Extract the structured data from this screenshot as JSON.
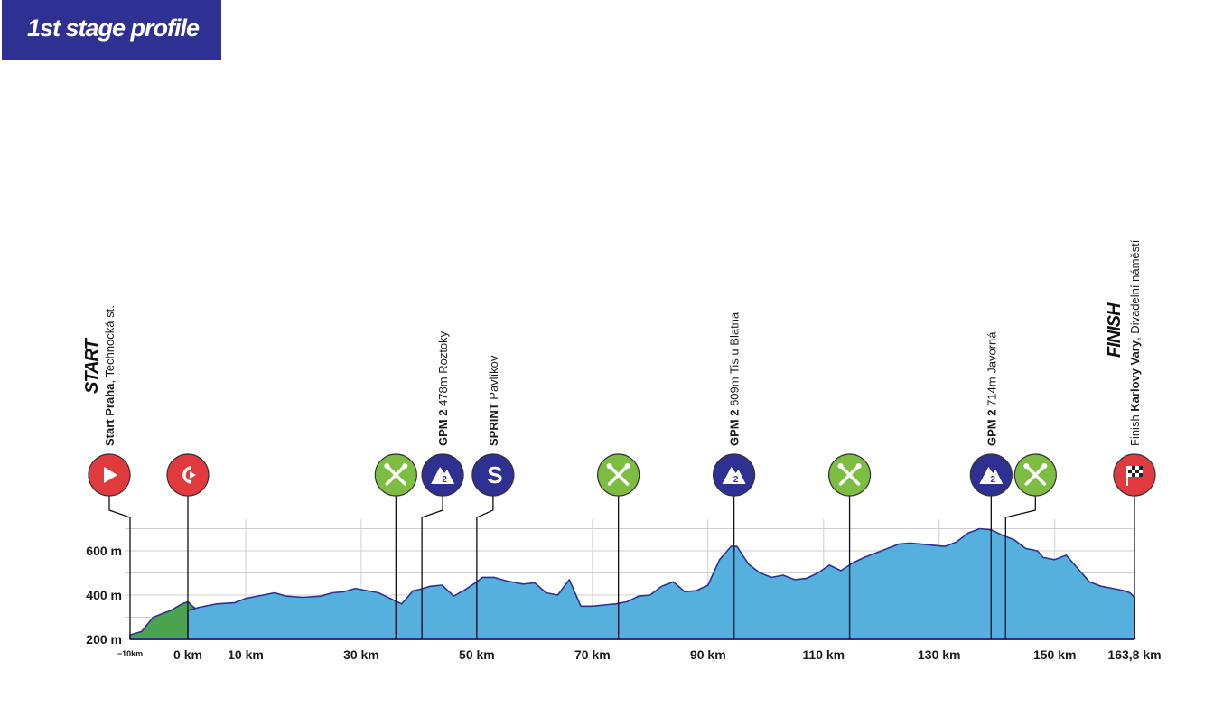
{
  "page": {
    "title": "1st stage profile"
  },
  "colors": {
    "banner": "#2e3192",
    "profile_fill": "#56b0de",
    "profile_stroke": "#2e3192",
    "neutral_fill": "#4ba24f",
    "start_marker": "#e03a3e",
    "feed_marker": "#7dbd42",
    "climb_marker": "#2e3192",
    "grid": "#cfcfcf"
  },
  "chart_data": {
    "type": "area",
    "title": "1st stage profile",
    "xlabel": "",
    "ylabel": "",
    "x_unit": "km",
    "y_unit": "m",
    "xlim": [
      -10,
      163.8
    ],
    "ylim": [
      200,
      750
    ],
    "grid": true,
    "x_ticks": [
      {
        "value": -10,
        "label": "−10km",
        "small": true
      },
      {
        "value": 0,
        "label": "0 km"
      },
      {
        "value": 10,
        "label": "10 km"
      },
      {
        "value": 30,
        "label": "30 km"
      },
      {
        "value": 50,
        "label": "50 km"
      },
      {
        "value": 70,
        "label": "70 km"
      },
      {
        "value": 90,
        "label": "90 km"
      },
      {
        "value": 110,
        "label": "110 km"
      },
      {
        "value": 130,
        "label": "130 km"
      },
      {
        "value": 150,
        "label": "150 km"
      },
      {
        "value": 163.8,
        "label": "163,8 km"
      }
    ],
    "y_ticks": [
      {
        "value": 200,
        "label": "200 m"
      },
      {
        "value": 400,
        "label": "400 m"
      },
      {
        "value": 600,
        "label": "600 m"
      }
    ],
    "series": [
      {
        "name": "",
        "segment": "neutral",
        "x": [
          -10,
          -8,
          -6,
          -5,
          -3,
          -1,
          0,
          1,
          2,
          4,
          6,
          8,
          10
        ],
        "y": [
          220,
          235,
          300,
          310,
          330,
          360,
          370,
          345,
          330,
          350,
          345,
          355,
          340
        ]
      },
      {
        "name": "",
        "segment": "race",
        "x": [
          0,
          2,
          5,
          8,
          10,
          13,
          15,
          17,
          20,
          23,
          25,
          27,
          29,
          31,
          33,
          35,
          37,
          39,
          40,
          42,
          44,
          45,
          46,
          48,
          50,
          51,
          53,
          55,
          58,
          60,
          62,
          64,
          66,
          68,
          70,
          72,
          74,
          76,
          78,
          80,
          82,
          84,
          86,
          88,
          90,
          92,
          93,
          94,
          95,
          97,
          99,
          101,
          103,
          105,
          107,
          109,
          111,
          113,
          115,
          117,
          119,
          121,
          123,
          125,
          127,
          129,
          131,
          133,
          135,
          137,
          139,
          141,
          143,
          145,
          147,
          148,
          150,
          152,
          154,
          156,
          158,
          160,
          162,
          163,
          163.8
        ],
        "y": [
          330,
          345,
          360,
          365,
          385,
          400,
          410,
          395,
          390,
          395,
          410,
          415,
          430,
          420,
          410,
          385,
          360,
          420,
          425,
          440,
          445,
          420,
          395,
          425,
          460,
          480,
          480,
          465,
          450,
          455,
          410,
          400,
          470,
          350,
          350,
          355,
          360,
          370,
          395,
          400,
          440,
          460,
          415,
          420,
          445,
          560,
          590,
          620,
          620,
          540,
          500,
          480,
          490,
          470,
          475,
          500,
          535,
          510,
          545,
          570,
          590,
          610,
          630,
          635,
          630,
          625,
          620,
          640,
          680,
          700,
          695,
          670,
          650,
          610,
          600,
          570,
          560,
          580,
          520,
          460,
          440,
          430,
          420,
          410,
          390
        ]
      }
    ],
    "waypoints": [
      {
        "km": -10,
        "kind": "start",
        "label_bold": "Start Praha",
        "label": ", Technocká st.",
        "big": "START"
      },
      {
        "km": 0,
        "kind": "km0"
      },
      {
        "km": 36,
        "kind": "feed"
      },
      {
        "km": 40.5,
        "kind": "climb",
        "category": "2",
        "label_bold": "GPM 2",
        "label": " 478m Roztoky"
      },
      {
        "km": 50,
        "kind": "sprint",
        "label_bold": "SPRINT",
        "label": " Pavlíkov"
      },
      {
        "km": 74.5,
        "kind": "feed"
      },
      {
        "km": 94.5,
        "kind": "climb",
        "category": "2",
        "label_bold": "GPM 2",
        "label": " 609m Tis u Blatna"
      },
      {
        "km": 114.5,
        "kind": "feed"
      },
      {
        "km": 139,
        "kind": "climb",
        "category": "2",
        "label_bold": "GPM 2",
        "label": " 714m Javorná"
      },
      {
        "km": 141.5,
        "kind": "feed"
      },
      {
        "km": 163.8,
        "kind": "finish",
        "label_pre": "Finish ",
        "label_bold": "Karlovy Vary",
        "label": ", Divadelní náměstí",
        "big": "FINISH"
      }
    ]
  }
}
